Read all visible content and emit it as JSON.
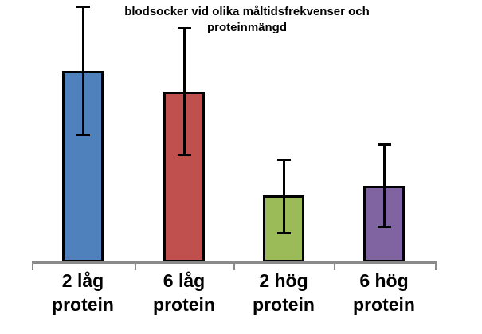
{
  "title": {
    "line1": "blodsocker vid olika måltidsfrekvenser och",
    "line2": "proteinmängd"
  },
  "chart_data": {
    "type": "bar",
    "title": "blodsocker vid olika måltidsfrekvenser och proteinmängd",
    "categories": [
      "2 låg protein",
      "6 låg protein",
      "2 hög protein",
      "6 hög protein"
    ],
    "category_lines": [
      [
        "2 låg",
        "protein"
      ],
      [
        "6 låg",
        "protein"
      ],
      [
        "2 hög",
        "protein"
      ],
      [
        "6 hög",
        "protein"
      ]
    ],
    "values": [
      240,
      214,
      84,
      96
    ],
    "error_bars": {
      "up": [
        81,
        80,
        45,
        52
      ],
      "down": [
        81,
        80,
        48,
        52
      ]
    },
    "value_units": "relative height (no y-axis scale shown in chart)",
    "y_axis_shown": false,
    "ylim": [
      0,
      260
    ],
    "xlabel": "",
    "ylabel": "",
    "legend": "none",
    "grid": false,
    "bar_colors": [
      "#4f81bd",
      "#c0504d",
      "#9bbb59",
      "#8064a2"
    ],
    "bar_border_color": "#000000",
    "error_bar_color": "#000000",
    "axis_color": "#8a8a8a"
  }
}
